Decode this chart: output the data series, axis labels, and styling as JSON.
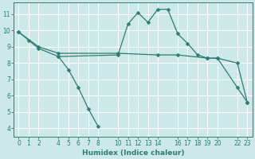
{
  "xlabel": "Humidex (Indice chaleur)",
  "background_color": "#cce8e8",
  "grid_color": "#ffffff",
  "line_color": "#2e7d72",
  "xlim": [
    -0.5,
    23.5
  ],
  "ylim": [
    3.5,
    11.7
  ],
  "xticks": [
    0,
    1,
    2,
    4,
    5,
    6,
    7,
    8,
    10,
    11,
    12,
    13,
    14,
    16,
    17,
    18,
    19,
    20,
    22,
    23
  ],
  "yticks": [
    4,
    5,
    6,
    7,
    8,
    9,
    10,
    11
  ],
  "line1": {
    "x": [
      0,
      1,
      2,
      4,
      10,
      11,
      12,
      13,
      14,
      15,
      16,
      17,
      18,
      19,
      20,
      22,
      23
    ],
    "y": [
      9.9,
      9.4,
      8.9,
      8.4,
      8.5,
      10.4,
      11.1,
      10.5,
      11.3,
      11.3,
      9.8,
      9.2,
      8.5,
      8.3,
      8.3,
      8.0,
      5.6
    ]
  },
  "line2": {
    "x": [
      0,
      2,
      4,
      10,
      14,
      16,
      19,
      20,
      22,
      23
    ],
    "y": [
      9.9,
      9.0,
      8.6,
      8.6,
      8.5,
      8.5,
      8.3,
      8.3,
      6.5,
      5.6
    ]
  },
  "line3": {
    "x": [
      4,
      5,
      6,
      7,
      8
    ],
    "y": [
      8.4,
      7.6,
      6.5,
      5.2,
      4.1
    ]
  },
  "tick_fontsize": 5.5,
  "xlabel_fontsize": 6.5
}
